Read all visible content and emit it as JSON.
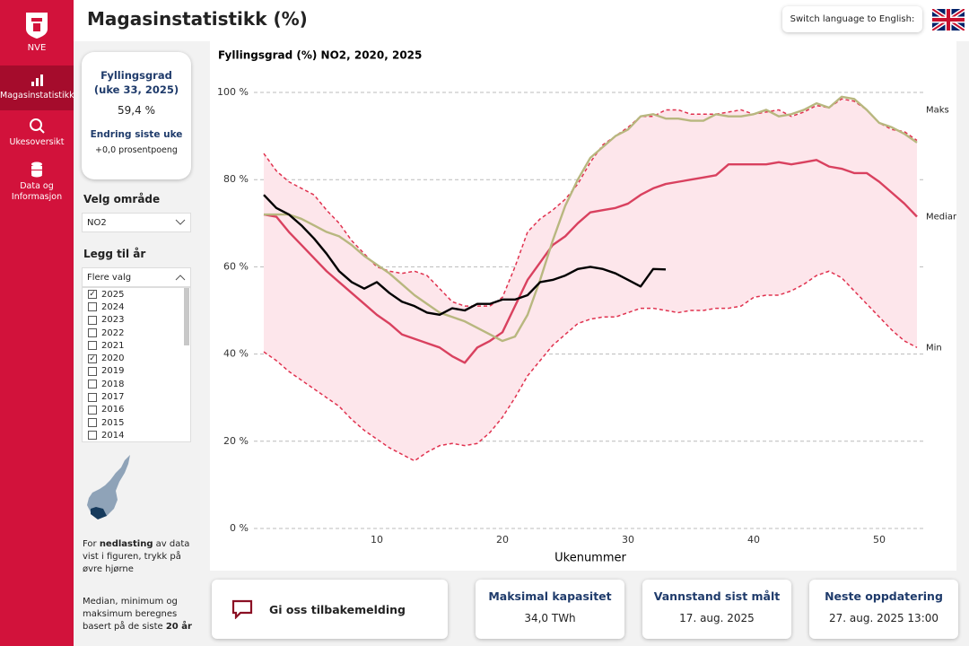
{
  "nav": {
    "logo": "NVE",
    "items": [
      "Magasinstatistikk",
      "Ukesoversikt",
      "Data og Informasjon"
    ]
  },
  "header": {
    "title": "Magasinstatistikk (%)",
    "language_button": "Switch language to English:"
  },
  "kpi": {
    "title": "Fyllingsgrad (uke 33, 2025)",
    "value": "59,4 %",
    "change_label": "Endring siste uke",
    "change_value": "+0,0 prosentpoeng"
  },
  "filters": {
    "area_label": "Velg område",
    "area_value": "NO2",
    "years_label": "Legg til år",
    "years_placeholder": "Flere valg",
    "years": [
      {
        "label": "2025",
        "checked": true
      },
      {
        "label": "2024",
        "checked": false
      },
      {
        "label": "2023",
        "checked": false
      },
      {
        "label": "2022",
        "checked": false
      },
      {
        "label": "2021",
        "checked": false
      },
      {
        "label": "2020",
        "checked": true
      },
      {
        "label": "2019",
        "checked": false
      },
      {
        "label": "2018",
        "checked": false
      },
      {
        "label": "2017",
        "checked": false
      },
      {
        "label": "2016",
        "checked": false
      },
      {
        "label": "2015",
        "checked": false
      },
      {
        "label": "2014",
        "checked": false
      }
    ]
  },
  "notes": {
    "download": [
      "For ",
      "nedlasting",
      " av data vist i figuren, trykk på øvre hjørne"
    ],
    "basis": [
      "Median, minimum og maksimum beregnes basert på de siste ",
      "20 år"
    ]
  },
  "chart_data": {
    "type": "line",
    "title": "Fyllingsgrad (%) NO2, 2020, 2025",
    "x_label": "Ukenummer",
    "x": [
      1,
      2,
      3,
      4,
      5,
      6,
      7,
      8,
      9,
      10,
      11,
      12,
      13,
      14,
      15,
      16,
      17,
      18,
      19,
      20,
      21,
      22,
      23,
      24,
      25,
      26,
      27,
      28,
      29,
      30,
      31,
      32,
      33,
      34,
      35,
      36,
      37,
      38,
      39,
      40,
      41,
      42,
      43,
      44,
      45,
      46,
      47,
      48,
      49,
      50,
      51,
      52,
      53
    ],
    "xlim": [
      0.5,
      53.5
    ],
    "xticks": [
      10,
      20,
      30,
      40,
      50
    ],
    "ylim": [
      0,
      100
    ],
    "yticks": [
      {
        "value": 0,
        "label": "0 %"
      },
      {
        "value": 20,
        "label": "20 %"
      },
      {
        "value": 40,
        "label": "40 %"
      },
      {
        "value": 60,
        "label": "60 %"
      },
      {
        "value": 80,
        "label": "80 %"
      },
      {
        "value": 100,
        "label": "100 %"
      }
    ],
    "grid": true,
    "series": [
      {
        "name": "Maks",
        "color": "#e0324f",
        "dash": true,
        "band_color": "#fde6eb",
        "values": [
          86,
          82,
          79.5,
          78,
          76.5,
          73,
          70,
          66,
          63,
          60,
          59,
          58.5,
          59,
          58,
          55,
          52,
          51,
          51,
          51,
          53,
          60,
          68,
          71,
          73,
          75.5,
          79,
          84,
          88,
          90,
          92,
          94.5,
          94.5,
          96,
          96,
          95,
          95,
          95,
          95.5,
          96,
          95,
          95.5,
          96,
          94.5,
          95.5,
          97,
          96.5,
          98.5,
          98,
          96,
          93,
          91.5,
          91,
          89
        ]
      },
      {
        "name": "Median",
        "color": "#d9415f",
        "dash": false,
        "values": [
          72,
          71.5,
          68,
          65,
          62,
          59,
          56.5,
          54,
          51.5,
          49,
          47,
          44.5,
          43.5,
          42.5,
          41.5,
          39.5,
          38,
          41.5,
          43,
          45,
          51,
          57,
          61,
          65,
          67,
          70,
          72.5,
          73,
          73.5,
          74.5,
          76.5,
          78,
          79,
          79.5,
          80,
          80.5,
          81,
          83.5,
          83.5,
          83.5,
          83.5,
          84,
          83.5,
          84,
          84.5,
          83,
          82.5,
          81.5,
          81.5,
          79.5,
          77,
          74.5,
          71.5
        ]
      },
      {
        "name": "Min",
        "color": "#e0324f",
        "dash": true,
        "values": [
          40.5,
          38.5,
          36,
          34,
          32,
          30,
          28,
          25,
          22.5,
          20.5,
          18.5,
          17,
          15.5,
          17.5,
          19,
          19.5,
          19,
          19.5,
          22,
          25.5,
          30,
          35,
          38.5,
          42,
          44.5,
          47,
          48,
          48.5,
          48.5,
          49.5,
          50.5,
          50.5,
          50,
          49.5,
          50,
          50,
          50.5,
          50.5,
          51,
          53,
          53.5,
          53.5,
          54.5,
          56,
          58,
          59,
          57.5,
          54.5,
          51.5,
          48.5,
          45.5,
          43,
          41.5
        ]
      },
      {
        "color": "#b8b77f",
        "dash": false,
        "values": [
          72,
          72,
          72,
          71,
          69.5,
          68,
          67,
          65,
          62.5,
          60.5,
          58.5,
          56,
          53.5,
          51.5,
          49.5,
          48.5,
          47.5,
          46,
          44.5,
          43,
          44,
          49,
          57,
          66,
          74,
          80,
          85,
          87.5,
          90,
          91.5,
          94.5,
          95,
          94,
          94,
          93.5,
          93.5,
          95,
          94.5,
          94.5,
          95,
          96,
          94.5,
          95,
          96,
          97.5,
          96.5,
          99,
          98.5,
          96,
          93,
          92,
          90.5,
          88.5
        ]
      },
      {
        "color": "#000000",
        "dash": false,
        "values": [
          76.5,
          73.5,
          72,
          69.5,
          66.5,
          63,
          59,
          56.5,
          55,
          56.5,
          54,
          52,
          51,
          49.5,
          49,
          50.5,
          50,
          51.5,
          51.5,
          52.5,
          52.5,
          53.5,
          56.5,
          57,
          58,
          59.5,
          60,
          59.5,
          58.5,
          57,
          55.5,
          59.5,
          59.4,
          null,
          null,
          null,
          null,
          null,
          null,
          null,
          null,
          null,
          null,
          null,
          null,
          null,
          null,
          null,
          null,
          null,
          null,
          null,
          null
        ]
      }
    ]
  },
  "footer": {
    "feedback": "Gi oss tilbakemelding",
    "cards": [
      {
        "title": "Maksimal kapasitet",
        "value": "34,0 TWh"
      },
      {
        "title": "Vannstand sist målt",
        "value": "17. aug. 2025"
      },
      {
        "title": "Neste oppdatering",
        "value": "27. aug. 2025 13:00"
      }
    ]
  }
}
